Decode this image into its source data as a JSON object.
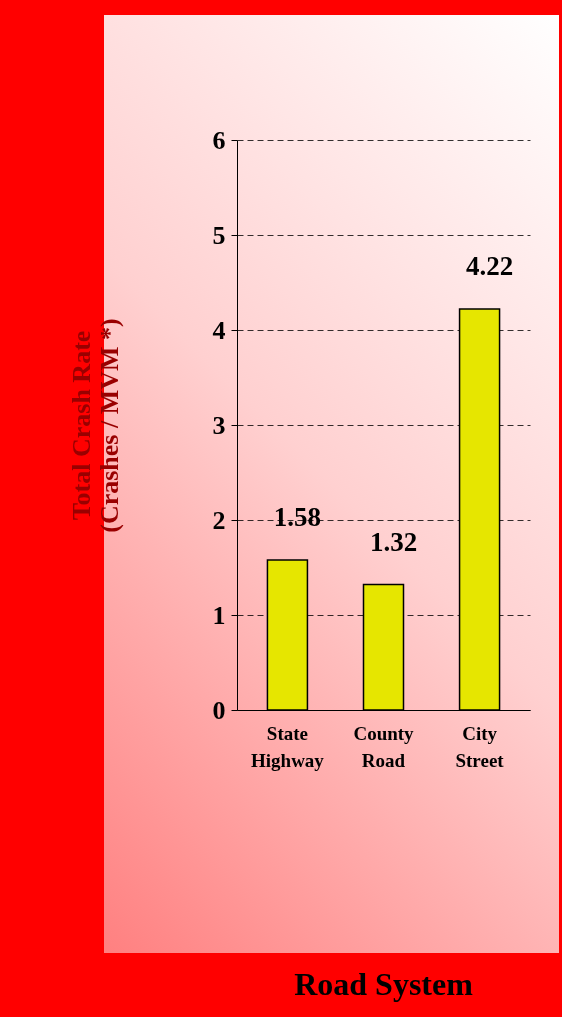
{
  "chart_data": {
    "type": "bar",
    "annotations": [
      "Road System"
    ],
    "ylabel": "Total Crash Rate\n(Crashes / MVM *)",
    "categories": [
      "State Highway",
      "County Road",
      "City Street"
    ],
    "values": [
      1.58,
      1.32,
      4.22
    ],
    "color": "#e6e600",
    "ylim": [
      0,
      6
    ],
    "yticks": [
      0,
      1,
      2,
      3,
      4,
      5,
      6
    ],
    "grid": "y",
    "data_labels": true
  }
}
